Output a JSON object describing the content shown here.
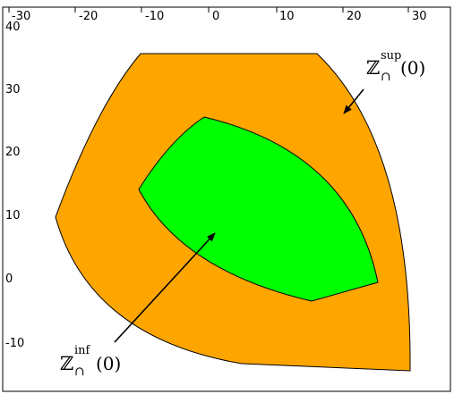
{
  "chart_data": {
    "type": "region-diagram",
    "x_ticks": [
      "-30",
      "-20",
      "-10",
      "0",
      "10",
      "20",
      "30"
    ],
    "y_ticks": [
      "40",
      "30",
      "20",
      "10",
      "0",
      "-10"
    ],
    "colors": {
      "outer_region": "#ffa500",
      "inner_region": "#00ff00",
      "border": "#000000"
    },
    "annotations": {
      "sup": {
        "symbol": "ℤ",
        "sub": "∩",
        "sup": "sup",
        "arg": "(0)"
      },
      "inf": {
        "symbol": "ℤ",
        "sub": "∩",
        "sup": "inf",
        "arg": "(0)"
      }
    }
  }
}
